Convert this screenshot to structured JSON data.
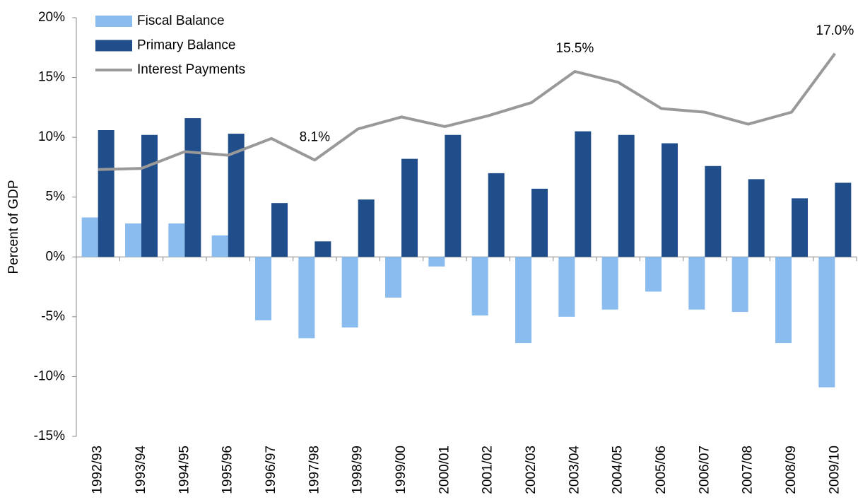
{
  "chart_data": {
    "type": "bar",
    "y_axis_label": "Percent of GDP",
    "categories": [
      "1992/93",
      "1993/94",
      "1994/95",
      "1995/96",
      "1996/97",
      "1997/98",
      "1998/99",
      "1999/00",
      "2000/01",
      "2001/02",
      "2002/03",
      "2003/04",
      "2004/05",
      "2005/06",
      "2006/07",
      "2007/08",
      "2008/09",
      "2009/10"
    ],
    "series": [
      {
        "name": "Fiscal Balance",
        "type": "bar",
        "color": "#8bbcf0",
        "values": [
          3.3,
          2.8,
          2.8,
          1.8,
          -5.3,
          -6.8,
          -5.9,
          -3.4,
          -0.8,
          -4.9,
          -7.2,
          -5.0,
          -4.4,
          -2.9,
          -4.4,
          -4.6,
          -7.2,
          -10.9
        ]
      },
      {
        "name": "Primary Balance",
        "type": "bar",
        "color": "#1f4e8a",
        "values": [
          10.6,
          10.2,
          11.6,
          10.3,
          4.5,
          1.3,
          4.8,
          8.2,
          10.2,
          7.0,
          5.7,
          10.5,
          10.2,
          9.5,
          7.6,
          6.5,
          4.9,
          6.2
        ]
      },
      {
        "name": "Interest Payments",
        "type": "line",
        "color": "#999999",
        "values": [
          7.3,
          7.4,
          8.8,
          8.5,
          9.9,
          8.1,
          10.7,
          11.7,
          10.9,
          11.8,
          12.9,
          15.5,
          14.6,
          12.4,
          12.1,
          11.1,
          12.1,
          17.0
        ],
        "value_labels": [
          null,
          null,
          null,
          null,
          null,
          "8.1%",
          null,
          null,
          null,
          null,
          null,
          "15.5%",
          null,
          null,
          null,
          null,
          null,
          "17.0%"
        ]
      }
    ],
    "ylim": [
      -15,
      20
    ],
    "yticks": [
      {
        "value": -15,
        "label": "-15%"
      },
      {
        "value": -10,
        "label": "-10%"
      },
      {
        "value": -5,
        "label": "-5%"
      },
      {
        "value": 0,
        "label": "0%"
      },
      {
        "value": 5,
        "label": "5%"
      },
      {
        "value": 10,
        "label": "10%"
      },
      {
        "value": 15,
        "label": "15%"
      },
      {
        "value": 20,
        "label": "20%"
      }
    ],
    "legend": "top-left"
  }
}
